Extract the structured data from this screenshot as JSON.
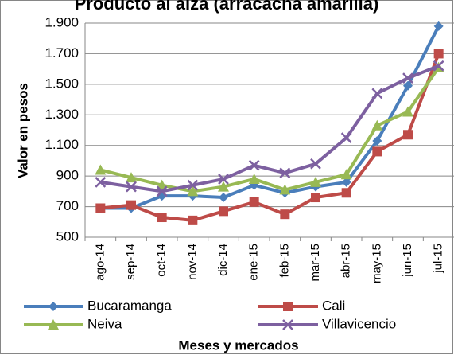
{
  "chart_data": {
    "type": "line",
    "title": "Producto al alza (arracacha amarilla)",
    "x_label": "Meses y mercados",
    "y_label": "Valor en pesos",
    "categories": [
      "ago-14",
      "sep-14",
      "oct-14",
      "nov-14",
      "dic-14",
      "ene-15",
      "feb-15",
      "mar-15",
      "abr-15",
      "may-15",
      "jun-15",
      "jul-15"
    ],
    "series": [
      {
        "name": "Bucaramanga",
        "color": "#4a7ebb",
        "marker": "diamond",
        "values": [
          690,
          690,
          770,
          770,
          760,
          840,
          790,
          830,
          860,
          1130,
          1490,
          1880
        ]
      },
      {
        "name": "Cali",
        "color": "#be4b48",
        "marker": "square",
        "values": [
          690,
          710,
          630,
          610,
          670,
          730,
          650,
          760,
          790,
          1060,
          1170,
          1700
        ]
      },
      {
        "name": "Neiva",
        "color": "#98b954",
        "marker": "triangle",
        "values": [
          940,
          890,
          840,
          800,
          830,
          880,
          810,
          860,
          910,
          1230,
          1320,
          1610
        ]
      },
      {
        "name": "Villavicencio",
        "color": "#7d60a0",
        "marker": "x",
        "values": [
          860,
          830,
          800,
          840,
          880,
          970,
          920,
          980,
          1150,
          1440,
          1540,
          1620
        ]
      }
    ],
    "ylim": [
      500,
      1900
    ],
    "yticks": [
      500,
      700,
      900,
      {
        "value": 1100,
        "label": "1.100"
      },
      {
        "value": 1300,
        "label": "1.300"
      },
      {
        "value": 1500,
        "label": "1.500"
      },
      {
        "value": 1700,
        "label": "1.700"
      },
      {
        "value": 1900,
        "label": "1.900"
      }
    ],
    "grid": true,
    "legend": "bottom"
  }
}
